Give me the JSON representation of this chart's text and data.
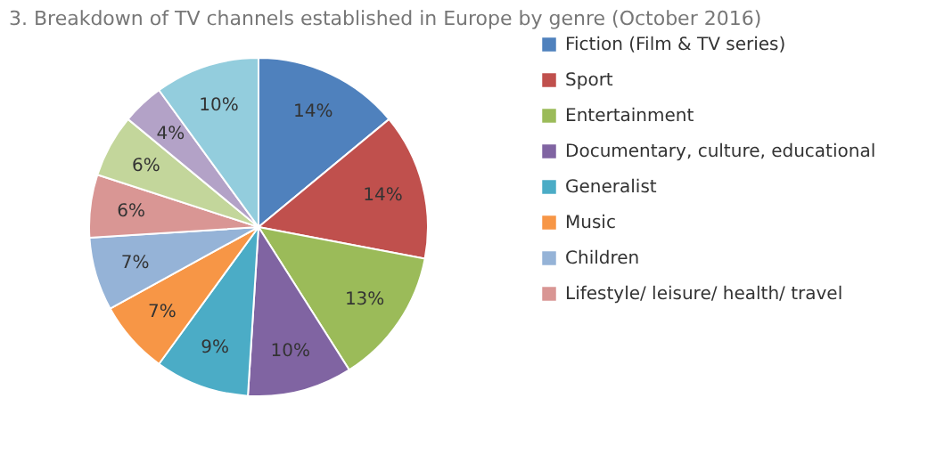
{
  "chart_data": {
    "type": "pie",
    "title": "3. Breakdown of TV channels established in Europe by genre (October 2016)",
    "categories": [
      "Fiction (Film & TV series)",
      "Sport",
      "Entertainment",
      "Documentary, culture, educational",
      "Generalist",
      "Music",
      "Children",
      "Lifestyle/ leisure/ health/ travel",
      null,
      null,
      null
    ],
    "values": [
      14,
      14,
      13,
      10,
      9,
      7,
      7,
      6,
      6,
      4,
      10
    ],
    "colors": [
      "#4f81bd",
      "#c0504d",
      "#9bbb59",
      "#8064a2",
      "#4bacc6",
      "#f79646",
      "#95b3d7",
      "#d99694",
      "#c3d69b",
      "#b3a2c7",
      "#93cddd"
    ],
    "value_labels": [
      "14%",
      "14%",
      "13%",
      "10%",
      "9%",
      "7%",
      "7%",
      "6%",
      "6%",
      "4%",
      "10%"
    ],
    "legend": "right"
  }
}
